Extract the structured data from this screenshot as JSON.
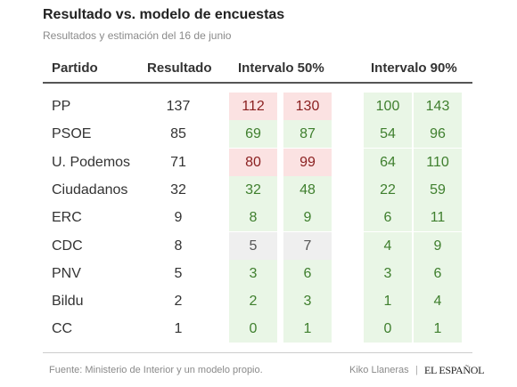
{
  "chart_data": {
    "type": "table",
    "title": "Resultado vs. modelo de encuestas",
    "subtitle": "Resultados y estimación del 16 de junio",
    "columns": [
      "Partido",
      "Resultado",
      "Intervalo 50%",
      "Intervalo 90%"
    ],
    "rows": [
      {
        "party": "PP",
        "result": 137,
        "i50": [
          112,
          130
        ],
        "i90": [
          100,
          143
        ],
        "status50": "red",
        "status90": "green"
      },
      {
        "party": "PSOE",
        "result": 85,
        "i50": [
          69,
          87
        ],
        "i90": [
          54,
          96
        ],
        "status50": "green",
        "status90": "green"
      },
      {
        "party": "U. Podemos",
        "result": 71,
        "i50": [
          80,
          99
        ],
        "i90": [
          64,
          110
        ],
        "status50": "red",
        "status90": "green"
      },
      {
        "party": "Ciudadanos",
        "result": 32,
        "i50": [
          32,
          48
        ],
        "i90": [
          22,
          59
        ],
        "status50": "green",
        "status90": "green"
      },
      {
        "party": "ERC",
        "result": 9,
        "i50": [
          8,
          9
        ],
        "i90": [
          6,
          11
        ],
        "status50": "green",
        "status90": "green"
      },
      {
        "party": "CDC",
        "result": 8,
        "i50": [
          5,
          7
        ],
        "i90": [
          4,
          9
        ],
        "status50": "gray",
        "status90": "green"
      },
      {
        "party": "PNV",
        "result": 5,
        "i50": [
          3,
          6
        ],
        "i90": [
          3,
          6
        ],
        "status50": "green",
        "status90": "green"
      },
      {
        "party": "Bildu",
        "result": 2,
        "i50": [
          2,
          3
        ],
        "i90": [
          1,
          4
        ],
        "status50": "green",
        "status90": "green"
      },
      {
        "party": "CC",
        "result": 1,
        "i50": [
          0,
          1
        ],
        "i90": [
          0,
          1
        ],
        "status50": "green",
        "status90": "green"
      }
    ],
    "colors": {
      "green": "#e9f6e6",
      "red": "#fbe2e2",
      "gray": "#efefef"
    }
  },
  "footer": {
    "source": "Fuente: Ministerio de Interior y un modelo propio.",
    "author": "Kiko Llaneras",
    "separator": "|",
    "brand": "EL ESPAÑOL"
  }
}
